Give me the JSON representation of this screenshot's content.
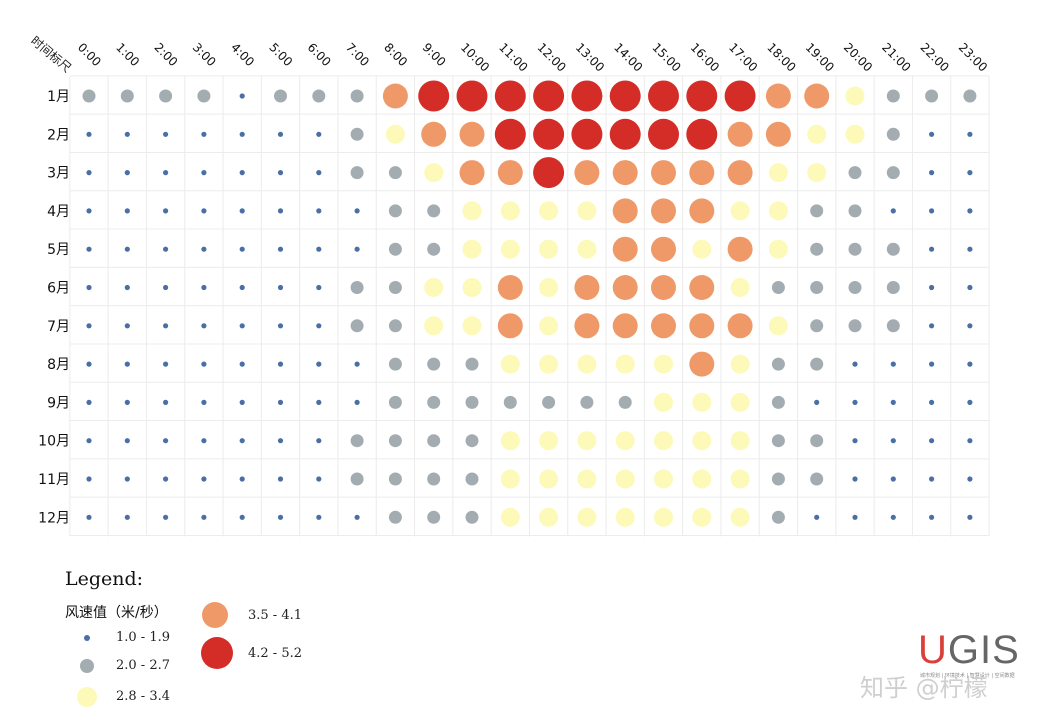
{
  "chart_data": {
    "type": "bubble-heatmap",
    "corner_label": "时间标尺",
    "hours": [
      "0:00",
      "1:00",
      "2:00",
      "3:00",
      "4:00",
      "5:00",
      "6:00",
      "7:00",
      "8:00",
      "9:00",
      "10:00",
      "11:00",
      "12:00",
      "13:00",
      "14:00",
      "15:00",
      "16:00",
      "17:00",
      "18:00",
      "19:00",
      "20:00",
      "21:00",
      "22:00",
      "23:00"
    ],
    "months": [
      "1月",
      "2月",
      "3月",
      "4月",
      "5月",
      "6月",
      "7月",
      "8月",
      "9月",
      "10月",
      "11月",
      "12月"
    ],
    "value_classes": [
      {
        "label": "1.0 - 1.9",
        "color": "#4a6fa5"
      },
      {
        "label": "2.0 - 2.7",
        "color": "#a3acb1"
      },
      {
        "label": "2.8 - 3.4",
        "color": "#fdf9b8"
      },
      {
        "label": "3.5 - 4.1",
        "color": "#ef9968"
      },
      {
        "label": "4.2 - 5.2",
        "color": "#d42d27"
      }
    ],
    "grid_class_index": [
      [
        1,
        1,
        1,
        1,
        0,
        1,
        1,
        1,
        3,
        4,
        4,
        4,
        4,
        4,
        4,
        4,
        4,
        4,
        3,
        3,
        2,
        1,
        1,
        1
      ],
      [
        0,
        0,
        0,
        0,
        0,
        0,
        0,
        1,
        2,
        3,
        3,
        4,
        4,
        4,
        4,
        4,
        4,
        3,
        3,
        2,
        2,
        1,
        0,
        0
      ],
      [
        0,
        0,
        0,
        0,
        0,
        0,
        0,
        1,
        1,
        2,
        3,
        3,
        4,
        3,
        3,
        3,
        3,
        3,
        2,
        2,
        1,
        1,
        0,
        0
      ],
      [
        0,
        0,
        0,
        0,
        0,
        0,
        0,
        0,
        1,
        1,
        2,
        2,
        2,
        2,
        3,
        3,
        3,
        2,
        2,
        1,
        1,
        0,
        0,
        0
      ],
      [
        0,
        0,
        0,
        0,
        0,
        0,
        0,
        0,
        1,
        1,
        2,
        2,
        2,
        2,
        3,
        3,
        2,
        3,
        2,
        1,
        1,
        1,
        0,
        0
      ],
      [
        0,
        0,
        0,
        0,
        0,
        0,
        0,
        1,
        1,
        2,
        2,
        3,
        2,
        3,
        3,
        3,
        3,
        2,
        1,
        1,
        1,
        1,
        0,
        0
      ],
      [
        0,
        0,
        0,
        0,
        0,
        0,
        0,
        1,
        1,
        2,
        2,
        3,
        2,
        3,
        3,
        3,
        3,
        3,
        2,
        1,
        1,
        1,
        0,
        0
      ],
      [
        0,
        0,
        0,
        0,
        0,
        0,
        0,
        0,
        1,
        1,
        1,
        2,
        2,
        2,
        2,
        2,
        3,
        2,
        1,
        1,
        0,
        0,
        0,
        0
      ],
      [
        0,
        0,
        0,
        0,
        0,
        0,
        0,
        0,
        1,
        1,
        1,
        1,
        1,
        1,
        1,
        2,
        2,
        2,
        1,
        0,
        0,
        0,
        0,
        0
      ],
      [
        0,
        0,
        0,
        0,
        0,
        0,
        0,
        1,
        1,
        1,
        1,
        2,
        2,
        2,
        2,
        2,
        2,
        2,
        1,
        1,
        0,
        0,
        0,
        0
      ],
      [
        0,
        0,
        0,
        0,
        0,
        0,
        0,
        1,
        1,
        1,
        1,
        2,
        2,
        2,
        2,
        2,
        2,
        2,
        1,
        1,
        0,
        0,
        0,
        0
      ],
      [
        0,
        0,
        0,
        0,
        0,
        0,
        0,
        0,
        1,
        1,
        1,
        2,
        2,
        2,
        2,
        2,
        2,
        2,
        1,
        0,
        0,
        0,
        0,
        0
      ]
    ]
  },
  "legend": {
    "title": "Legend:",
    "subtitle": "风速值（米/秒）",
    "items": [
      {
        "label": "1.0 - 1.9"
      },
      {
        "label": "2.0 - 2.7"
      },
      {
        "label": "2.8 - 3.4"
      },
      {
        "label": "3.5 - 4.1"
      },
      {
        "label": "4.2 - 5.2"
      }
    ]
  },
  "logo": {
    "text_u": "U",
    "text_rest": "GIS",
    "tagline": "城市规划 | 环境技术 | 智慧设计 | 空间数据"
  },
  "watermark": "知乎 @柠檬"
}
